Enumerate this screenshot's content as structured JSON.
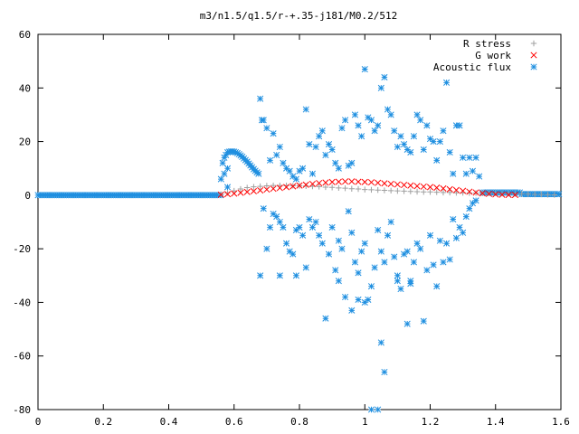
{
  "chart_data": {
    "type": "scatter",
    "title": "m3/n1.5/q1.5/r-+.35-j181/M0.2/512",
    "xlabel": "",
    "ylabel": "",
    "xlim": [
      0,
      1.6
    ],
    "ylim": [
      -80,
      60
    ],
    "x_ticks": [
      "0",
      "0.2",
      "0.4",
      "0.6",
      "0.8",
      "1",
      "1.2",
      "1.4",
      "1.6"
    ],
    "y_ticks": [
      "60",
      "40",
      "20",
      "0",
      "-20",
      "-40",
      "-60",
      "-80"
    ],
    "grid": false,
    "legend_position": "top-right",
    "series": [
      {
        "name": "R stress",
        "marker": "plus",
        "color": "#a0a0a0",
        "points": [
          [
            0.56,
            0.3
          ],
          [
            0.58,
            0.8
          ],
          [
            0.6,
            1.6
          ],
          [
            0.62,
            2.3
          ],
          [
            0.64,
            2.8
          ],
          [
            0.66,
            3.1
          ],
          [
            0.68,
            3.3
          ],
          [
            0.7,
            3.5
          ],
          [
            0.72,
            3.6
          ],
          [
            0.74,
            3.6
          ],
          [
            0.76,
            3.6
          ],
          [
            0.78,
            3.5
          ],
          [
            0.8,
            3.5
          ],
          [
            0.82,
            3.4
          ],
          [
            0.84,
            3.3
          ],
          [
            0.86,
            3.2
          ],
          [
            0.88,
            3.0
          ],
          [
            0.9,
            2.9
          ],
          [
            0.92,
            2.7
          ],
          [
            0.94,
            2.6
          ],
          [
            0.96,
            2.4
          ],
          [
            0.98,
            2.3
          ],
          [
            1.0,
            2.1
          ],
          [
            1.02,
            2.0
          ],
          [
            1.04,
            1.9
          ],
          [
            1.06,
            1.8
          ],
          [
            1.08,
            1.7
          ],
          [
            1.1,
            1.6
          ],
          [
            1.12,
            1.5
          ],
          [
            1.14,
            1.4
          ],
          [
            1.16,
            1.3
          ],
          [
            1.18,
            1.2
          ],
          [
            1.2,
            1.2
          ],
          [
            1.22,
            1.1
          ],
          [
            1.24,
            1.0
          ],
          [
            1.26,
            1.0
          ],
          [
            1.28,
            0.9
          ],
          [
            1.3,
            0.9
          ],
          [
            1.32,
            0.8
          ],
          [
            1.34,
            0.8
          ],
          [
            1.36,
            0.7
          ],
          [
            1.38,
            0.7
          ],
          [
            1.4,
            0.7
          ],
          [
            1.42,
            0.6
          ],
          [
            1.44,
            0.6
          ],
          [
            1.46,
            0.5
          ],
          [
            1.48,
            0.5
          ],
          [
            1.5,
            0.4
          ],
          [
            1.52,
            0.3
          ],
          [
            1.54,
            0.3
          ],
          [
            1.56,
            0.2
          ],
          [
            1.58,
            0.1
          ]
        ]
      },
      {
        "name": "G work",
        "marker": "cross",
        "color": "#ff0000",
        "points": [
          [
            0.56,
            0.2
          ],
          [
            0.58,
            0.4
          ],
          [
            0.6,
            0.6
          ],
          [
            0.62,
            0.9
          ],
          [
            0.64,
            1.2
          ],
          [
            0.66,
            1.5
          ],
          [
            0.68,
            1.8
          ],
          [
            0.7,
            2.1
          ],
          [
            0.72,
            2.4
          ],
          [
            0.74,
            2.7
          ],
          [
            0.76,
            3.0
          ],
          [
            0.78,
            3.3
          ],
          [
            0.8,
            3.6
          ],
          [
            0.82,
            3.9
          ],
          [
            0.84,
            4.2
          ],
          [
            0.86,
            4.5
          ],
          [
            0.88,
            4.7
          ],
          [
            0.9,
            4.9
          ],
          [
            0.92,
            5.0
          ],
          [
            0.94,
            5.1
          ],
          [
            0.96,
            5.1
          ],
          [
            0.98,
            5.0
          ],
          [
            1.0,
            4.9
          ],
          [
            1.02,
            4.8
          ],
          [
            1.04,
            4.6
          ],
          [
            1.06,
            4.4
          ],
          [
            1.08,
            4.2
          ],
          [
            1.1,
            4.0
          ],
          [
            1.12,
            3.8
          ],
          [
            1.14,
            3.6
          ],
          [
            1.16,
            3.4
          ],
          [
            1.18,
            3.2
          ],
          [
            1.2,
            3.0
          ],
          [
            1.22,
            2.8
          ],
          [
            1.24,
            2.5
          ],
          [
            1.26,
            2.2
          ],
          [
            1.28,
            1.9
          ],
          [
            1.3,
            1.6
          ],
          [
            1.32,
            1.3
          ],
          [
            1.34,
            1.0
          ],
          [
            1.36,
            0.7
          ],
          [
            1.38,
            0.5
          ],
          [
            1.4,
            0.3
          ],
          [
            1.42,
            0.2
          ],
          [
            1.44,
            0.1
          ],
          [
            1.46,
            0.1
          ]
        ]
      },
      {
        "name": "Acoustic flux",
        "marker": "star",
        "color": "#1f8fe0",
        "points": [
          [
            0.565,
            12
          ],
          [
            0.57,
            14
          ],
          [
            0.575,
            15
          ],
          [
            0.58,
            16
          ],
          [
            0.585,
            16.2
          ],
          [
            0.59,
            16.3
          ],
          [
            0.595,
            16.3
          ],
          [
            0.6,
            16.2
          ],
          [
            0.605,
            16
          ],
          [
            0.61,
            15.7
          ],
          [
            0.615,
            15.3
          ],
          [
            0.62,
            14.8
          ],
          [
            0.625,
            14.3
          ],
          [
            0.63,
            13.7
          ],
          [
            0.635,
            13.1
          ],
          [
            0.64,
            12.5
          ],
          [
            0.645,
            11.8
          ],
          [
            0.65,
            11.1
          ],
          [
            0.655,
            10.4
          ],
          [
            0.66,
            9.7
          ],
          [
            0.665,
            9.1
          ],
          [
            0.67,
            8.5
          ],
          [
            0.675,
            8.0
          ],
          [
            0.58,
            10
          ],
          [
            0.57,
            8
          ],
          [
            0.56,
            6
          ],
          [
            0.58,
            3
          ],
          [
            0.68,
            36
          ],
          [
            0.685,
            28
          ],
          [
            0.69,
            28
          ],
          [
            0.7,
            25
          ],
          [
            0.71,
            13
          ],
          [
            0.72,
            23
          ],
          [
            0.73,
            15
          ],
          [
            0.74,
            18
          ],
          [
            0.75,
            12
          ],
          [
            0.76,
            10
          ],
          [
            0.77,
            9
          ],
          [
            0.78,
            7
          ],
          [
            0.79,
            6
          ],
          [
            0.8,
            9
          ],
          [
            0.81,
            10
          ],
          [
            0.82,
            32
          ],
          [
            0.83,
            19
          ],
          [
            0.84,
            8
          ],
          [
            0.85,
            18
          ],
          [
            0.86,
            22
          ],
          [
            0.87,
            24
          ],
          [
            0.88,
            15
          ],
          [
            0.89,
            19
          ],
          [
            0.9,
            17
          ],
          [
            0.91,
            12
          ],
          [
            0.92,
            10
          ],
          [
            0.93,
            25
          ],
          [
            0.94,
            28
          ],
          [
            0.95,
            11
          ],
          [
            0.96,
            12
          ],
          [
            0.97,
            30
          ],
          [
            0.98,
            26
          ],
          [
            0.99,
            22
          ],
          [
            1.0,
            47
          ],
          [
            1.01,
            29
          ],
          [
            1.02,
            28
          ],
          [
            1.03,
            24
          ],
          [
            1.04,
            26
          ],
          [
            1.05,
            40
          ],
          [
            1.06,
            44
          ],
          [
            1.07,
            32
          ],
          [
            1.08,
            30
          ],
          [
            1.09,
            24
          ],
          [
            1.1,
            18
          ],
          [
            1.11,
            22
          ],
          [
            1.12,
            19
          ],
          [
            1.13,
            17
          ],
          [
            1.14,
            16
          ],
          [
            1.15,
            22
          ],
          [
            1.16,
            30
          ],
          [
            1.17,
            28
          ],
          [
            1.18,
            17
          ],
          [
            1.19,
            26
          ],
          [
            1.2,
            21
          ],
          [
            1.21,
            20
          ],
          [
            1.22,
            13
          ],
          [
            1.23,
            20
          ],
          [
            1.24,
            24
          ],
          [
            1.25,
            42
          ],
          [
            1.26,
            16
          ],
          [
            1.27,
            8
          ],
          [
            1.28,
            26
          ],
          [
            1.29,
            26
          ],
          [
            1.3,
            14
          ],
          [
            1.31,
            8
          ],
          [
            1.32,
            14
          ],
          [
            1.33,
            9
          ],
          [
            1.34,
            14
          ],
          [
            1.35,
            7
          ],
          [
            0.69,
            -5
          ],
          [
            0.7,
            -20
          ],
          [
            0.71,
            -12
          ],
          [
            0.72,
            -7
          ],
          [
            0.73,
            -8
          ],
          [
            0.74,
            -10
          ],
          [
            0.75,
            -12
          ],
          [
            0.76,
            -18
          ],
          [
            0.77,
            -21
          ],
          [
            0.78,
            -22
          ],
          [
            0.79,
            -13
          ],
          [
            0.8,
            -12
          ],
          [
            0.81,
            -15
          ],
          [
            0.82,
            -27
          ],
          [
            0.83,
            -9
          ],
          [
            0.84,
            -12
          ],
          [
            0.85,
            -10
          ],
          [
            0.86,
            -15
          ],
          [
            0.87,
            -18
          ],
          [
            0.88,
            -46
          ],
          [
            0.89,
            -22
          ],
          [
            0.9,
            -12
          ],
          [
            0.91,
            -28
          ],
          [
            0.92,
            -17
          ],
          [
            0.93,
            -20
          ],
          [
            0.94,
            -38
          ],
          [
            0.95,
            -6
          ],
          [
            0.96,
            -14
          ],
          [
            0.97,
            -25
          ],
          [
            0.98,
            -29
          ],
          [
            0.99,
            -21
          ],
          [
            1.0,
            -18
          ],
          [
            1.01,
            -39
          ],
          [
            1.02,
            -34
          ],
          [
            1.03,
            -27
          ],
          [
            1.04,
            -13
          ],
          [
            1.05,
            -21
          ],
          [
            1.06,
            -25
          ],
          [
            1.07,
            -15
          ],
          [
            1.08,
            -10
          ],
          [
            1.09,
            -23
          ],
          [
            1.1,
            -30
          ],
          [
            1.11,
            -35
          ],
          [
            1.12,
            -22
          ],
          [
            1.13,
            -48
          ],
          [
            1.14,
            -32
          ],
          [
            1.15,
            -25
          ],
          [
            1.16,
            -18
          ],
          [
            1.17,
            -20
          ],
          [
            1.18,
            -47
          ],
          [
            1.19,
            -28
          ],
          [
            1.2,
            -15
          ],
          [
            1.21,
            -26
          ],
          [
            1.22,
            -34
          ],
          [
            1.23,
            -17
          ],
          [
            1.24,
            -25
          ],
          [
            1.25,
            -18
          ],
          [
            1.26,
            -24
          ],
          [
            1.27,
            -9
          ],
          [
            1.28,
            -16
          ],
          [
            1.29,
            -12
          ],
          [
            1.3,
            -14
          ],
          [
            1.31,
            -8
          ],
          [
            1.32,
            -5
          ],
          [
            1.33,
            -3
          ],
          [
            1.34,
            -2
          ],
          [
            0.68,
            -30
          ],
          [
            0.74,
            -30
          ],
          [
            0.79,
            -30
          ],
          [
            0.92,
            -32
          ],
          [
            0.98,
            -39
          ],
          [
            1.0,
            -40
          ],
          [
            1.05,
            -55
          ],
          [
            1.06,
            -66
          ],
          [
            1.1,
            -32
          ],
          [
            1.13,
            -21
          ],
          [
            1.14,
            -33
          ],
          [
            0.96,
            -43
          ],
          [
            1.02,
            -80
          ],
          [
            1.04,
            -80
          ]
        ]
      }
    ]
  }
}
